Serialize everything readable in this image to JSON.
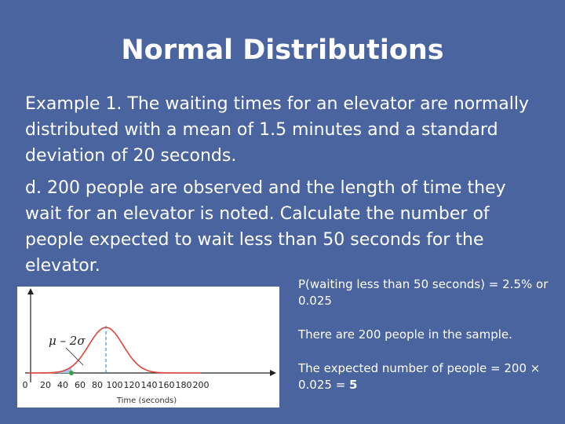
{
  "slide": {
    "title": "Normal Distributions",
    "paragraphs": [
      "Example 1. The waiting times for an elevator are normally distributed with a mean of 1.5 minutes and a standard deviation of 20 seconds.",
      "d. 200 people are observed and the length of time they wait for an elevator is noted. Calculate the number of people expected to wait less than 50 seconds for the elevator."
    ],
    "notes": {
      "line1": "P(waiting less than 50 seconds) = 2.5% or 0.025",
      "line2": "There are 200 people in the sample.",
      "line3": "The expected number of people = 200 × 0.025 = ",
      "line3_answer": "5"
    }
  },
  "figure": {
    "annotation": "μ – 2σ",
    "x_axis_label": "Time (seconds)",
    "x_ticks": [
      "0",
      "20",
      "40",
      "60",
      "80",
      "100",
      "120",
      "140",
      "160",
      "180",
      "200"
    ],
    "colors": {
      "curve": "#e0453a",
      "mean_line": "#3b8fd6",
      "shade": "#9fc4e8",
      "point": "#3aa04a"
    }
  }
}
